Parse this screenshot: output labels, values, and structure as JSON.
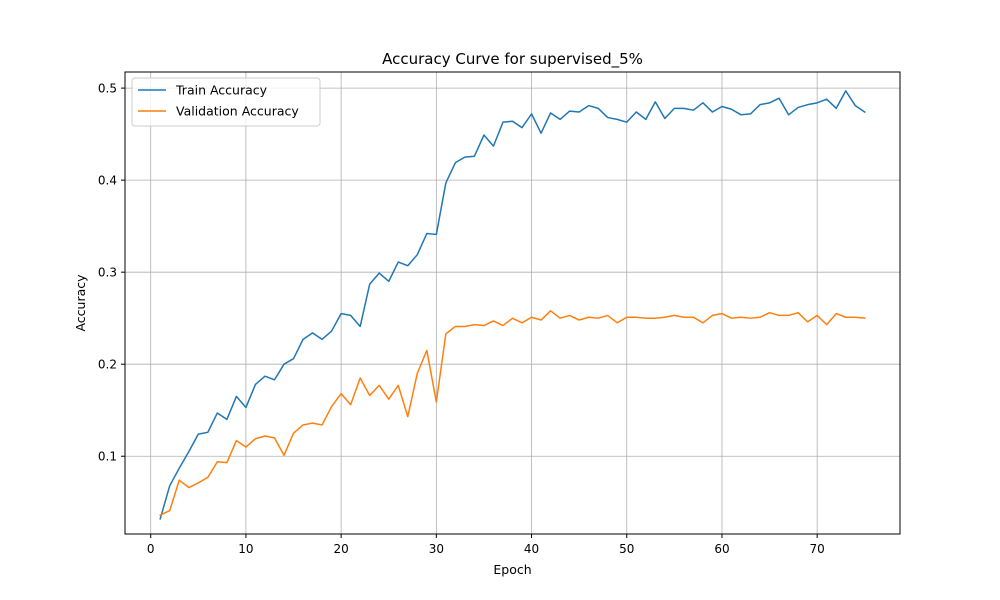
{
  "chart_data": {
    "type": "line",
    "title": "Accuracy Curve for supervised_5%",
    "xlabel": "Epoch",
    "ylabel": "Accuracy",
    "xlim": [
      -2.7,
      78.7
    ],
    "ylim": [
      0.0155,
      0.5175
    ],
    "xticks": [
      0,
      10,
      20,
      30,
      40,
      50,
      60,
      70
    ],
    "yticks": [
      0.1,
      0.2,
      0.3,
      0.4,
      0.5
    ],
    "grid": true,
    "legend_position": "top-left",
    "x": [
      1,
      2,
      3,
      4,
      5,
      6,
      7,
      8,
      9,
      10,
      11,
      12,
      13,
      14,
      15,
      16,
      17,
      18,
      19,
      20,
      21,
      22,
      23,
      24,
      25,
      26,
      27,
      28,
      29,
      30,
      31,
      32,
      33,
      34,
      35,
      36,
      37,
      38,
      39,
      40,
      41,
      42,
      43,
      44,
      45,
      46,
      47,
      48,
      49,
      50,
      51,
      52,
      53,
      54,
      55,
      56,
      57,
      58,
      59,
      60,
      61,
      62,
      63,
      64,
      65,
      66,
      67,
      68,
      69,
      70,
      71,
      72,
      73,
      74,
      75
    ],
    "series": [
      {
        "name": "Train Accuracy",
        "color": "#1f77b4",
        "values": [
          0.032,
          0.068,
          0.087,
          0.105,
          0.124,
          0.126,
          0.147,
          0.14,
          0.165,
          0.153,
          0.178,
          0.187,
          0.183,
          0.2,
          0.206,
          0.227,
          0.234,
          0.227,
          0.236,
          0.255,
          0.253,
          0.241,
          0.287,
          0.299,
          0.29,
          0.311,
          0.307,
          0.319,
          0.342,
          0.341,
          0.397,
          0.419,
          0.425,
          0.426,
          0.449,
          0.437,
          0.463,
          0.464,
          0.457,
          0.472,
          0.451,
          0.473,
          0.466,
          0.475,
          0.474,
          0.481,
          0.478,
          0.468,
          0.466,
          0.463,
          0.474,
          0.466,
          0.485,
          0.467,
          0.478,
          0.478,
          0.476,
          0.484,
          0.474,
          0.48,
          0.477,
          0.471,
          0.472,
          0.482,
          0.484,
          0.489,
          0.471,
          0.479,
          0.482,
          0.484,
          0.488,
          0.478,
          0.497,
          0.481,
          0.474
        ]
      },
      {
        "name": "Validation Accuracy",
        "color": "#ff7f0e",
        "values": [
          0.036,
          0.041,
          0.074,
          0.066,
          0.071,
          0.077,
          0.094,
          0.093,
          0.117,
          0.11,
          0.119,
          0.122,
          0.12,
          0.101,
          0.125,
          0.134,
          0.136,
          0.134,
          0.154,
          0.168,
          0.156,
          0.185,
          0.166,
          0.177,
          0.162,
          0.177,
          0.143,
          0.19,
          0.215,
          0.159,
          0.233,
          0.241,
          0.241,
          0.243,
          0.242,
          0.247,
          0.242,
          0.25,
          0.245,
          0.251,
          0.248,
          0.258,
          0.25,
          0.253,
          0.248,
          0.251,
          0.25,
          0.253,
          0.245,
          0.251,
          0.251,
          0.25,
          0.25,
          0.251,
          0.253,
          0.251,
          0.251,
          0.245,
          0.253,
          0.255,
          0.25,
          0.251,
          0.25,
          0.251,
          0.256,
          0.253,
          0.253,
          0.256,
          0.246,
          0.253,
          0.243,
          0.255,
          0.251,
          0.251,
          0.25
        ]
      }
    ]
  }
}
